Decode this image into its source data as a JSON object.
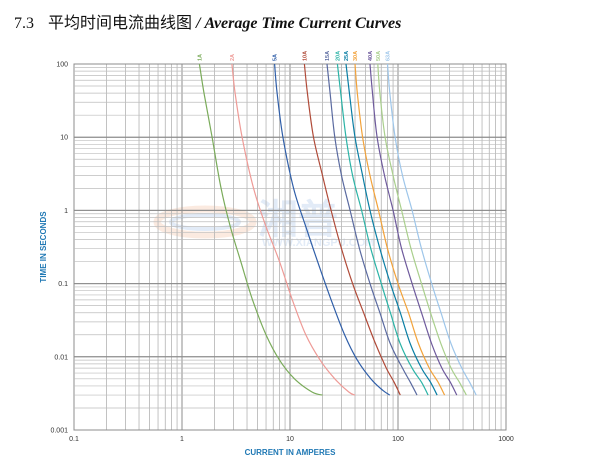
{
  "heading": {
    "number": "7.3",
    "title_cn": "平均时间电流曲线图",
    "title_en": "/ Average Time Current Curves"
  },
  "watermark": {
    "brand": "湘普",
    "url": "WWW.XIANGPU.COM"
  },
  "chart_data": {
    "type": "line",
    "title": "平均时间电流曲线图 / Average Time Current Curves",
    "xlabel": "CURRENT IN AMPERES",
    "ylabel": "TIME IN SECONDS",
    "x_scale": "log",
    "y_scale": "log",
    "xlim": [
      0.1,
      1000
    ],
    "ylim": [
      0.001,
      100
    ],
    "x_ticks": [
      "0.1",
      "1",
      "10",
      "100",
      "1000"
    ],
    "y_ticks": [
      "100",
      "10",
      "1",
      "0.1",
      "0.01",
      "0.001"
    ],
    "grid": true,
    "series": [
      {
        "name": "1A",
        "color": "#7aab5a",
        "points": [
          [
            1.45,
            100
          ],
          [
            1.6,
            40
          ],
          [
            1.9,
            10
          ],
          [
            2.3,
            2
          ],
          [
            2.8,
            0.6
          ],
          [
            3.5,
            0.2
          ],
          [
            4.5,
            0.06
          ],
          [
            6,
            0.02
          ],
          [
            8,
            0.009
          ],
          [
            11,
            0.005
          ],
          [
            16,
            0.0033
          ],
          [
            20,
            0.003
          ]
        ]
      },
      {
        "name": "2A",
        "color": "#ee9a96",
        "points": [
          [
            2.9,
            100
          ],
          [
            3.1,
            40
          ],
          [
            3.6,
            10
          ],
          [
            4.6,
            2
          ],
          [
            6,
            0.6
          ],
          [
            8,
            0.2
          ],
          [
            10.5,
            0.06
          ],
          [
            14,
            0.02
          ],
          [
            19,
            0.009
          ],
          [
            26,
            0.005
          ],
          [
            35,
            0.0033
          ],
          [
            40,
            0.003
          ]
        ]
      },
      {
        "name": "5A",
        "color": "#2f5ea8",
        "points": [
          [
            7.2,
            100
          ],
          [
            7.6,
            40
          ],
          [
            8.6,
            10
          ],
          [
            10.8,
            2
          ],
          [
            14,
            0.6
          ],
          [
            18,
            0.2
          ],
          [
            24,
            0.06
          ],
          [
            32,
            0.02
          ],
          [
            42,
            0.009
          ],
          [
            56,
            0.005
          ],
          [
            72,
            0.0035
          ],
          [
            84,
            0.003
          ]
        ]
      },
      {
        "name": "10A",
        "color": "#b04a38",
        "points": [
          [
            13.6,
            100
          ],
          [
            14.5,
            40
          ],
          [
            16.5,
            10
          ],
          [
            20,
            3
          ],
          [
            24,
            1
          ],
          [
            30,
            0.3
          ],
          [
            38,
            0.1
          ],
          [
            48,
            0.04
          ],
          [
            62,
            0.015
          ],
          [
            78,
            0.007
          ],
          [
            92,
            0.0045
          ],
          [
            105,
            0.003
          ]
        ]
      },
      {
        "name": "15A",
        "color": "#5a6aa0",
        "points": [
          [
            22,
            100
          ],
          [
            23.5,
            40
          ],
          [
            26,
            10
          ],
          [
            30,
            3
          ],
          [
            36,
            1
          ],
          [
            44,
            0.3
          ],
          [
            55,
            0.1
          ],
          [
            68,
            0.04
          ],
          [
            85,
            0.015
          ],
          [
            110,
            0.007
          ],
          [
            130,
            0.0045
          ],
          [
            150,
            0.003
          ]
        ]
      },
      {
        "name": "20A",
        "color": "#2bb3a6",
        "points": [
          [
            27.5,
            100
          ],
          [
            29.5,
            40
          ],
          [
            33,
            10
          ],
          [
            38,
            3
          ],
          [
            46,
            1
          ],
          [
            56,
            0.3
          ],
          [
            70,
            0.1
          ],
          [
            85,
            0.04
          ],
          [
            105,
            0.015
          ],
          [
            135,
            0.007
          ],
          [
            165,
            0.0045
          ],
          [
            190,
            0.003
          ]
        ]
      },
      {
        "name": "25A",
        "color": "#0a7ea4",
        "points": [
          [
            33,
            100
          ],
          [
            35.5,
            40
          ],
          [
            40,
            10
          ],
          [
            47,
            3
          ],
          [
            55,
            1
          ],
          [
            68,
            0.3
          ],
          [
            85,
            0.1
          ],
          [
            105,
            0.04
          ],
          [
            130,
            0.015
          ],
          [
            165,
            0.007
          ],
          [
            200,
            0.0045
          ],
          [
            230,
            0.003
          ]
        ]
      },
      {
        "name": "30A",
        "color": "#f2a23a",
        "points": [
          [
            40,
            100
          ],
          [
            42,
            40
          ],
          [
            47,
            10
          ],
          [
            55,
            3
          ],
          [
            66,
            1
          ],
          [
            80,
            0.3
          ],
          [
            100,
            0.1
          ],
          [
            125,
            0.04
          ],
          [
            155,
            0.015
          ],
          [
            195,
            0.007
          ],
          [
            235,
            0.0045
          ],
          [
            270,
            0.003
          ]
        ]
      },
      {
        "name": "40A",
        "color": "#6e5a9c",
        "points": [
          [
            55,
            100
          ],
          [
            58,
            40
          ],
          [
            64,
            10
          ],
          [
            75,
            3
          ],
          [
            90,
            1
          ],
          [
            108,
            0.3
          ],
          [
            135,
            0.1
          ],
          [
            165,
            0.04
          ],
          [
            205,
            0.015
          ],
          [
            255,
            0.007
          ],
          [
            305,
            0.0045
          ],
          [
            350,
            0.003
          ]
        ]
      },
      {
        "name": "50A",
        "color": "#a9cf8c",
        "points": [
          [
            65,
            100
          ],
          [
            68,
            40
          ],
          [
            76,
            10
          ],
          [
            90,
            3
          ],
          [
            108,
            1
          ],
          [
            132,
            0.3
          ],
          [
            165,
            0.1
          ],
          [
            200,
            0.04
          ],
          [
            250,
            0.015
          ],
          [
            310,
            0.007
          ],
          [
            370,
            0.0045
          ],
          [
            430,
            0.003
          ]
        ]
      },
      {
        "name": "63A",
        "color": "#9ec6ea",
        "points": [
          [
            80,
            100
          ],
          [
            84,
            40
          ],
          [
            94,
            10
          ],
          [
            110,
            3
          ],
          [
            135,
            1
          ],
          [
            165,
            0.3
          ],
          [
            205,
            0.1
          ],
          [
            250,
            0.04
          ],
          [
            310,
            0.015
          ],
          [
            390,
            0.007
          ],
          [
            460,
            0.0045
          ],
          [
            530,
            0.003
          ]
        ]
      }
    ]
  }
}
